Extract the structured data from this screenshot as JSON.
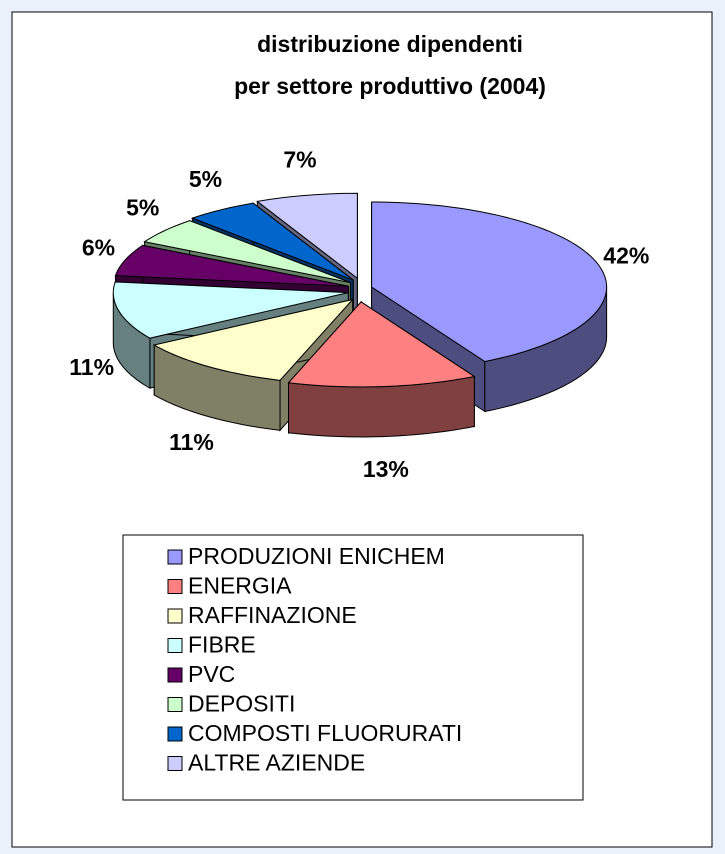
{
  "chart_data": {
    "type": "pie3d",
    "title": [
      "distribuzione dipendenti",
      "per settore produttivo (2004)"
    ],
    "categories": [
      "PRODUZIONI ENICHEM",
      "ENERGIA",
      "RAFFINAZIONE",
      "FIBRE",
      "PVC",
      "DEPOSITI",
      "COMPOSTI FLUORURATI",
      "ALTRE AZIENDE"
    ],
    "values": [
      42,
      13,
      11,
      11,
      6,
      5,
      5,
      7
    ],
    "value_labels": [
      "42%",
      "13%",
      "11%",
      "11%",
      "6%",
      "5%",
      "5%",
      "7%"
    ],
    "colors": [
      "#9999ff",
      "#ff8080",
      "#ffffcc",
      "#ccffff",
      "#660066",
      "#ccffcc",
      "#0066cc",
      "#ccccff"
    ],
    "legend": "bottom"
  }
}
